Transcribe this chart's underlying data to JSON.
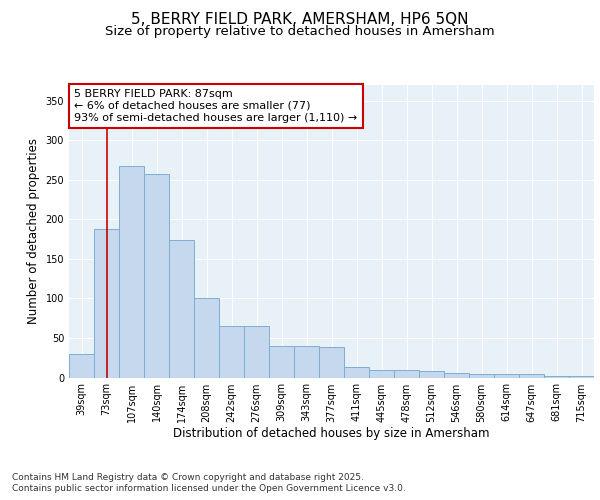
{
  "title_line1": "5, BERRY FIELD PARK, AMERSHAM, HP6 5QN",
  "title_line2": "Size of property relative to detached houses in Amersham",
  "xlabel": "Distribution of detached houses by size in Amersham",
  "ylabel": "Number of detached properties",
  "categories": [
    "39sqm",
    "73sqm",
    "107sqm",
    "140sqm",
    "174sqm",
    "208sqm",
    "242sqm",
    "276sqm",
    "309sqm",
    "343sqm",
    "377sqm",
    "411sqm",
    "445sqm",
    "478sqm",
    "512sqm",
    "546sqm",
    "580sqm",
    "614sqm",
    "647sqm",
    "681sqm",
    "715sqm"
  ],
  "values": [
    30,
    188,
    268,
    257,
    174,
    100,
    65,
    65,
    40,
    40,
    38,
    13,
    10,
    9,
    8,
    6,
    5,
    4,
    4,
    2,
    2
  ],
  "bar_color": "#c5d8ee",
  "bar_edge_color": "#7bafd4",
  "vline_x": 1,
  "vline_color": "#cc0000",
  "annotation_text": "5 BERRY FIELD PARK: 87sqm\n← 6% of detached houses are smaller (77)\n93% of semi-detached houses are larger (1,110) →",
  "annotation_box_color": "#ffffff",
  "annotation_box_edge_color": "#cc0000",
  "ylim": [
    0,
    370
  ],
  "yticks": [
    0,
    50,
    100,
    150,
    200,
    250,
    300,
    350
  ],
  "background_color": "#ffffff",
  "plot_background_color": "#e8f0f8",
  "footer_line1": "Contains HM Land Registry data © Crown copyright and database right 2025.",
  "footer_line2": "Contains public sector information licensed under the Open Government Licence v3.0.",
  "grid_color": "#ffffff",
  "title_fontsize": 11,
  "subtitle_fontsize": 9.5,
  "axis_label_fontsize": 8.5,
  "tick_fontsize": 7,
  "annotation_fontsize": 8,
  "footer_fontsize": 6.5
}
